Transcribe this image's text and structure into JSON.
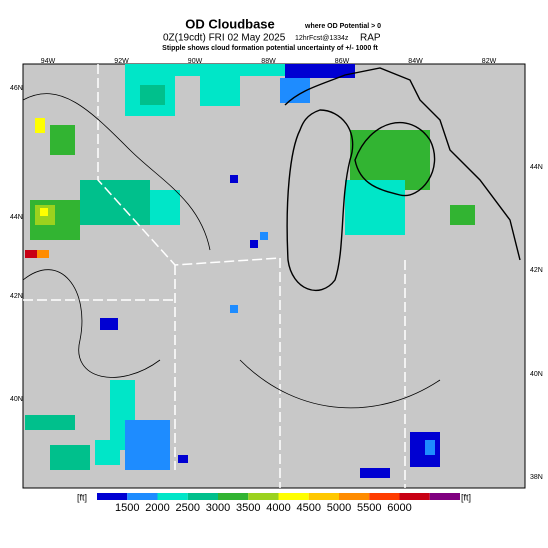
{
  "header": {
    "title": "OD Cloudbase",
    "title_note": "where OD Potential > 0",
    "run": "0Z(19cdt) FRI 02 May 2025",
    "forecast": "12hrFcst@1334z",
    "model": "RAP",
    "subtitle": "Stipple shows cloud formation potential uncertainty of +/- 1000 ft"
  },
  "map": {
    "lon_labels": [
      "94W",
      "92W",
      "90W",
      "88W",
      "86W",
      "84W",
      "82W"
    ],
    "lat_labels_left": [
      "46N",
      "44N",
      "42N",
      "40N"
    ],
    "lat_labels_right": [
      "44N",
      "42N",
      "40N",
      "38N"
    ]
  },
  "colorbar": {
    "unit_left": "[ft]",
    "unit_right": "[ft]",
    "labels": [
      "1500",
      "2000",
      "2500",
      "3000",
      "3500",
      "4000",
      "4500",
      "5000",
      "5500",
      "6000"
    ],
    "colors": [
      "#0000d2",
      "#1e8cff",
      "#00e6c8",
      "#00c08c",
      "#32b432",
      "#9bd21e",
      "#ffff00",
      "#ffc800",
      "#ff8c00",
      "#ff3c00",
      "#c80014",
      "#800080"
    ]
  }
}
